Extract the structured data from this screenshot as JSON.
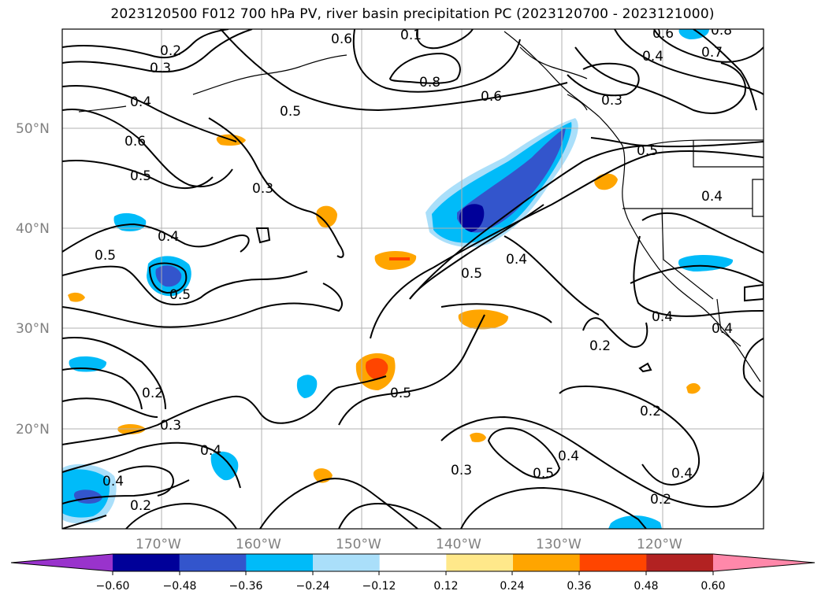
{
  "title": "2023120500 F012 700 hPa PV, river basin precipitation PC (2023120700 - 2023121000)",
  "map": {
    "lat_labels": [
      "50°N",
      "40°N",
      "30°N",
      "20°N"
    ],
    "lon_labels": [
      "170°W",
      "160°W",
      "150°W",
      "140°W",
      "130°W",
      "120°W"
    ],
    "contour_labels": [
      "0.2",
      "0.3",
      "0.4",
      "0.6",
      "0.5",
      "0.5",
      "0.4",
      "0.3",
      "0.5",
      "0.6",
      "0.8",
      "0.6",
      "0.1",
      "0.3",
      "0.5",
      "0.4",
      "0.7",
      "0.8",
      "0.6",
      "0.5",
      "0.4",
      "0.4",
      "0.5",
      "0.4",
      "0.2",
      "0.3",
      "0.2",
      "0.4",
      "0.3",
      "0.5",
      "0.4",
      "0.2",
      "0.4",
      "0.2",
      "0.2",
      "0.4",
      "0.5",
      "0.4"
    ]
  },
  "colorbar": {
    "tick_labels": [
      "−0.60",
      "−0.48",
      "−0.36",
      "−0.24",
      "−0.12",
      "0.12",
      "0.24",
      "0.36",
      "0.48",
      "0.60"
    ],
    "colors": [
      "#9933cc",
      "#000099",
      "#3355cc",
      "#00bbf9",
      "#aadffa",
      "#ffffff",
      "#ffe88a",
      "#ffa500",
      "#ff4500",
      "#b22222",
      "#ff88aa"
    ]
  }
}
